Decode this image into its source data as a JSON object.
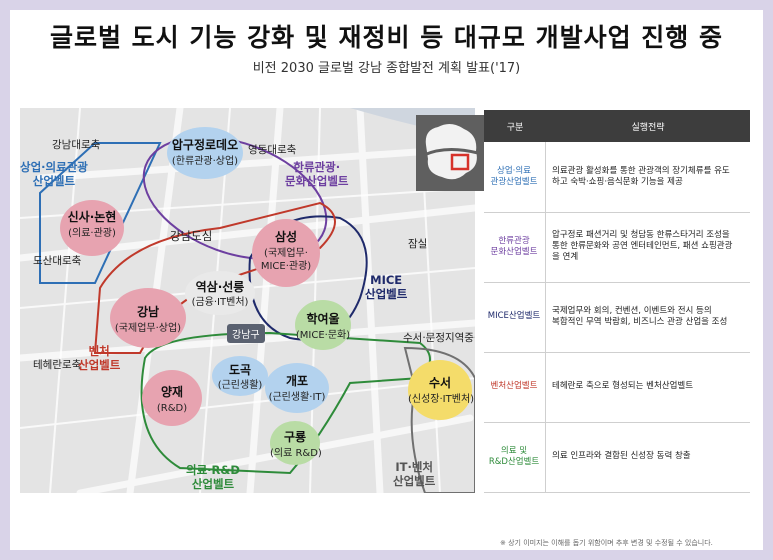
{
  "header": {
    "title": "글로벌 도시 기능 강화 및 재정비 등 대규모 개발사업 진행 중",
    "subtitle": "비전 2030 글로벌 강남 종합발전 계획 발표('17)"
  },
  "map": {
    "streets": {
      "gangnam_daero": "강남대로축",
      "yeongdong_daero": "영동대로축",
      "dosan_daero": "도산대로축",
      "teheran_ro": "테헤란로축",
      "jamsil": "잠실",
      "suseo_munjeong": "수서·문정지역중심",
      "gangnam_dosim": "강남도심"
    },
    "belts": {
      "commercial_medical": [
        "상업·의료관광",
        "산업벨트"
      ],
      "hallyu": [
        "한류관광·",
        "문화산업벨트"
      ],
      "mice": [
        "MICE",
        "산업벨트"
      ],
      "venture": [
        "벤처",
        "산업벨트"
      ],
      "medical_rnd": [
        "의료·R&D",
        "산업벨트"
      ],
      "it_venture": [
        "IT·벤처",
        "산업벨트"
      ]
    },
    "district_tag": "강남구",
    "nodes": {
      "apgujeong": {
        "name": "압구정로데오",
        "sub": "(한류관광·상업)"
      },
      "sinsa": {
        "name": "신사·논현",
        "sub": "(의료·관광)"
      },
      "samseong": {
        "name": "삼성",
        "sub": [
          "(국제업무·",
          "MICE·관광)"
        ]
      },
      "yeoksam": {
        "name": "역삼·선릉",
        "sub": "(금융·IT벤처)"
      },
      "gangnam": {
        "name": "강남",
        "sub": "(국제업무·상업)"
      },
      "hakyeoul": {
        "name": "학여울",
        "sub": "(MICE·문화)"
      },
      "yangjae": {
        "name": "양재",
        "sub": "(R&D)"
      },
      "dogok": {
        "name": "도곡",
        "sub": "(근린생활)"
      },
      "gaepo": {
        "name": "개포",
        "sub": "(근린생활·IT)"
      },
      "guryong": {
        "name": "구룡",
        "sub": "(의료 R&D)"
      },
      "suseo": {
        "name": "수서",
        "sub": "(신성장·IT벤처)"
      }
    },
    "colors": {
      "commercial": "#2e6fb5",
      "hallyu": "#6d3fa0",
      "mice": "#1f2a6b",
      "venture": "#c0392b",
      "medical": "#2e8b3a",
      "it": "#707070",
      "pink": "#e7a3b0",
      "green": "#b9dca5",
      "blue": "#b3d2ee",
      "yellow": "#f4dc6a"
    }
  },
  "table": {
    "headers": [
      "구분",
      "실행전략"
    ],
    "rows": [
      {
        "category": [
          "상업·의료",
          "관광산업벨트"
        ],
        "strategy": [
          "의료관광 활성화를 통한 관광객의 장기체류를 유도",
          "하고 숙박·쇼핑·음식문화 기능을 제공"
        ],
        "color": "#2e6fb5"
      },
      {
        "category": [
          "한류관광",
          "문화산업벨트"
        ],
        "strategy": [
          "압구정로 패션거리 및 청담동 한류스타거리 조성을",
          "통한 한류문화와 공연 엔터테인먼트, 패션 쇼핑관광",
          "을 연계"
        ],
        "color": "#6d3fa0"
      },
      {
        "category": [
          "MICE산업벨트"
        ],
        "strategy": [
          "국제업무와 회의, 컨벤션, 이벤트와 전시 등의",
          "복합적인 무역 박람회, 비즈니스 관광 산업을 조성"
        ],
        "color": "#1f2a6b"
      },
      {
        "category": [
          "벤처산업벨트"
        ],
        "strategy": [
          "테헤란로 축으로 형성되는 벤처산업벨트"
        ],
        "color": "#c0392b"
      },
      {
        "category": [
          "의료 및",
          "R&D산업벨트"
        ],
        "strategy": [
          "의료 인프라와 결합된 신성장 동력 창출"
        ],
        "color": "#2e8b3a"
      }
    ]
  },
  "footnote": "※ 상기 이미지는 이해를 돕기 위함이며 추후 변경 및 수정될 수 있습니다."
}
